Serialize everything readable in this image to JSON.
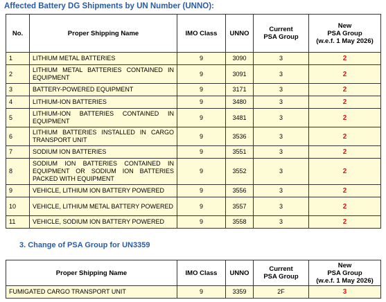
{
  "title": "Affected Battery DG Shipments by UN Number (UNNO):",
  "table": {
    "headers": [
      [
        "No."
      ],
      [
        "Proper Shipping Name"
      ],
      [
        "IMO Class"
      ],
      [
        "UNNO"
      ],
      [
        "Current",
        "PSA Group"
      ],
      [
        "New",
        "PSA Group",
        "(w.e.f. 1 May 2026)"
      ]
    ],
    "rows": [
      [
        1,
        "LITHIUM METAL BATTERIES",
        9,
        3090,
        3,
        2
      ],
      [
        2,
        "LITHIUM METAL BATTERIES CONTAINED IN EQUIPMENT",
        9,
        3091,
        3,
        2
      ],
      [
        3,
        "BATTERY-POWERED EQUIPMENT",
        9,
        3171,
        3,
        2
      ],
      [
        4,
        "LITHIUM-ION BATTERIES",
        9,
        3480,
        3,
        2
      ],
      [
        5,
        "LITHIUM-ION BATTERIES CONTAINED IN EQUIPMENT",
        9,
        3481,
        3,
        2
      ],
      [
        6,
        "LITHIUM BATTERIES INSTALLED IN CARGO TRANSPORT UNIT",
        9,
        3536,
        3,
        2
      ],
      [
        7,
        "SODIUM ION BATTERIES",
        9,
        3551,
        3,
        2
      ],
      [
        8,
        "SODIUM ION BATTERIES CONTAINED IN EQUIPMENT OR SODIUM ION BATTERIES PACKED WITH EQUIPMENT",
        9,
        3552,
        3,
        2
      ],
      [
        9,
        "VEHICLE, LITHIUM ION BATTERY POWERED",
        9,
        3556,
        3,
        2
      ],
      [
        10,
        "VEHICLE, LITHIUM METAL BATTERY POWERED",
        9,
        3557,
        3,
        2
      ],
      [
        11,
        "VEHICLE, SODIUM ION BATTERY POWERED",
        9,
        3558,
        3,
        2
      ]
    ]
  },
  "section2": {
    "heading": "3.   Change of PSA Group for UN3359",
    "table": {
      "headers": [
        [
          "Proper Shipping Name"
        ],
        [
          "IMO Class"
        ],
        [
          "UNNO"
        ],
        [
          "Current",
          "PSA Group"
        ],
        [
          "New",
          "PSA Group",
          "(w.e.f. 1 May 2026)"
        ]
      ],
      "rows": [
        [
          "FUMIGATED CARGO TRANSPORT UNIT",
          9,
          3359,
          "2F",
          3
        ]
      ]
    }
  }
}
